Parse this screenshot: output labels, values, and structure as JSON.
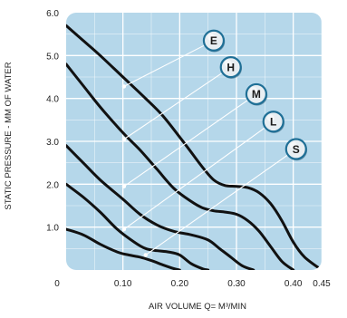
{
  "chart_data": {
    "type": "line",
    "title": "",
    "xlabel": "AIR VOLUME Q= M³/MIN",
    "ylabel": "STATIC PRESSURE - MM OF WATER",
    "xlim": [
      0,
      0.45
    ],
    "ylim": [
      0,
      6.0
    ],
    "x_ticks": [
      0,
      0.1,
      0.2,
      0.3,
      0.4,
      0.45
    ],
    "x_tick_labels": [
      "0",
      "0.10",
      "0.20",
      "0.30",
      "0.40",
      "0.45"
    ],
    "y_ticks": [
      1.0,
      2.0,
      3.0,
      4.0,
      5.0,
      6.0
    ],
    "y_tick_labels": [
      "1.0",
      "2.0",
      "3.0",
      "4.0",
      "5.0",
      "6.0"
    ],
    "grid": true,
    "colors": {
      "plot_background": "#b5d7ea",
      "grid": "#ffffff",
      "curve": "#111111",
      "badge_fill": "#e8eef2",
      "badge_ring": "#1f6f96"
    },
    "series": [
      {
        "name": "E",
        "x": [
          0.0,
          0.03,
          0.06,
          0.1,
          0.14,
          0.17,
          0.2,
          0.22,
          0.24,
          0.26,
          0.28,
          0.3,
          0.32,
          0.34,
          0.36,
          0.38,
          0.4,
          0.42,
          0.45
        ],
        "y": [
          5.7,
          5.35,
          5.0,
          4.5,
          4.0,
          3.6,
          3.1,
          2.75,
          2.4,
          2.1,
          1.97,
          1.95,
          1.92,
          1.8,
          1.55,
          1.15,
          0.65,
          0.3,
          0.0
        ]
      },
      {
        "name": "H",
        "x": [
          0.0,
          0.03,
          0.06,
          0.1,
          0.13,
          0.16,
          0.19,
          0.22,
          0.24,
          0.26,
          0.28,
          0.3,
          0.32,
          0.34,
          0.36,
          0.38,
          0.4
        ],
        "y": [
          4.8,
          4.3,
          3.8,
          3.2,
          2.8,
          2.35,
          1.9,
          1.6,
          1.45,
          1.38,
          1.35,
          1.3,
          1.15,
          0.9,
          0.55,
          0.2,
          0.0
        ]
      },
      {
        "name": "M",
        "x": [
          0.0,
          0.03,
          0.06,
          0.1,
          0.13,
          0.16,
          0.19,
          0.22,
          0.25,
          0.27,
          0.29,
          0.31,
          0.33
        ],
        "y": [
          2.9,
          2.5,
          2.1,
          1.65,
          1.3,
          1.05,
          0.9,
          0.82,
          0.7,
          0.5,
          0.3,
          0.1,
          0.0
        ]
      },
      {
        "name": "L",
        "x": [
          0.0,
          0.03,
          0.06,
          0.09,
          0.12,
          0.14,
          0.16,
          0.18,
          0.2,
          0.22,
          0.24,
          0.25
        ],
        "y": [
          2.0,
          1.7,
          1.35,
          0.95,
          0.65,
          0.5,
          0.45,
          0.42,
          0.35,
          0.15,
          0.03,
          0.0
        ]
      },
      {
        "name": "S",
        "x": [
          0.0,
          0.03,
          0.06,
          0.09,
          0.11,
          0.13,
          0.15,
          0.17,
          0.19,
          0.2
        ],
        "y": [
          0.95,
          0.82,
          0.6,
          0.42,
          0.35,
          0.3,
          0.22,
          0.12,
          0.03,
          0.0
        ]
      }
    ],
    "annotations": [
      {
        "label": "E",
        "anchor": [
          0.102,
          4.28
        ],
        "badge": [
          0.26,
          5.35
        ]
      },
      {
        "label": "H",
        "anchor": [
          0.102,
          3.05
        ],
        "badge": [
          0.29,
          4.73
        ]
      },
      {
        "label": "M",
        "anchor": [
          0.102,
          1.95
        ],
        "badge": [
          0.335,
          4.1
        ]
      },
      {
        "label": "L",
        "anchor": [
          0.102,
          0.95
        ],
        "badge": [
          0.365,
          3.46
        ]
      },
      {
        "label": "S",
        "anchor": [
          0.14,
          0.35
        ],
        "badge": [
          0.405,
          2.82
        ]
      }
    ]
  }
}
